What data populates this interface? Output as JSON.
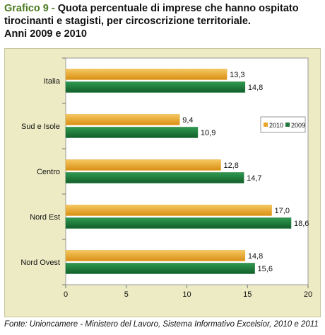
{
  "title": {
    "prefix": "Grafico 9 - ",
    "line1": "Quota percentuale di imprese che hanno ospitato",
    "line2": "tirocinanti e stagisti, per circoscrizione territoriale.",
    "line3": "Anni 2009 e 2010"
  },
  "source": "Fonte: Unioncamere - Ministero del Lavoro, Sistema Informativo Excelsior, 2010 e 2011",
  "colors": {
    "series_2010": "#e8a52a",
    "series_2009": "#1f7a3a",
    "background": "#ecebc4",
    "plot": "#ffffff"
  },
  "chart_data": {
    "type": "bar",
    "orientation": "horizontal",
    "categories": [
      "Italia",
      "Sud e Isole",
      "Centro",
      "Nord Est",
      "Nord Ovest"
    ],
    "series": [
      {
        "name": "2010",
        "values": [
          13.3,
          9.4,
          12.8,
          17.0,
          14.8
        ],
        "labels": [
          "13,3",
          "9,4",
          "12,8",
          "17,0",
          "14,8"
        ]
      },
      {
        "name": "2009",
        "values": [
          14.8,
          10.9,
          14.7,
          18.6,
          15.6
        ],
        "labels": [
          "14,8",
          "10,9",
          "14,7",
          "18,6",
          "15,6"
        ]
      }
    ],
    "xlim": [
      0,
      20
    ],
    "xticks": [
      0,
      5,
      10,
      15,
      20
    ],
    "xlabel": "",
    "ylabel": "",
    "grid": false,
    "legend": "right"
  }
}
